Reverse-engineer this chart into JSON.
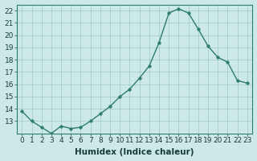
{
  "x": [
    0,
    1,
    2,
    3,
    4,
    5,
    6,
    7,
    8,
    9,
    10,
    11,
    12,
    13,
    14,
    15,
    16,
    17,
    18,
    19,
    20,
    21,
    22,
    23
  ],
  "y": [
    13.8,
    13.0,
    12.5,
    12.0,
    12.6,
    12.4,
    12.5,
    13.0,
    13.6,
    14.2,
    15.0,
    15.6,
    16.5,
    17.5,
    19.4,
    21.8,
    22.15,
    21.8,
    20.5,
    19.1,
    18.2,
    17.8,
    16.3,
    16.1
  ],
  "line_color": "#2e7d6e",
  "marker_color": "#2e7d6e",
  "bg_color": "#cce9e7",
  "grid_color": "#9dc8c5",
  "xlabel": "Humidex (Indice chaleur)",
  "xlim": [
    -0.5,
    23.5
  ],
  "ylim": [
    12.0,
    22.5
  ],
  "yticks": [
    13,
    14,
    15,
    16,
    17,
    18,
    19,
    20,
    21,
    22
  ],
  "xticks": [
    0,
    1,
    2,
    3,
    4,
    5,
    6,
    7,
    8,
    9,
    10,
    11,
    12,
    13,
    14,
    15,
    16,
    17,
    18,
    19,
    20,
    21,
    22,
    23
  ],
  "xlabel_fontsize": 7.5,
  "tick_fontsize": 6.5,
  "line_width": 1.0,
  "marker_size": 2.5
}
